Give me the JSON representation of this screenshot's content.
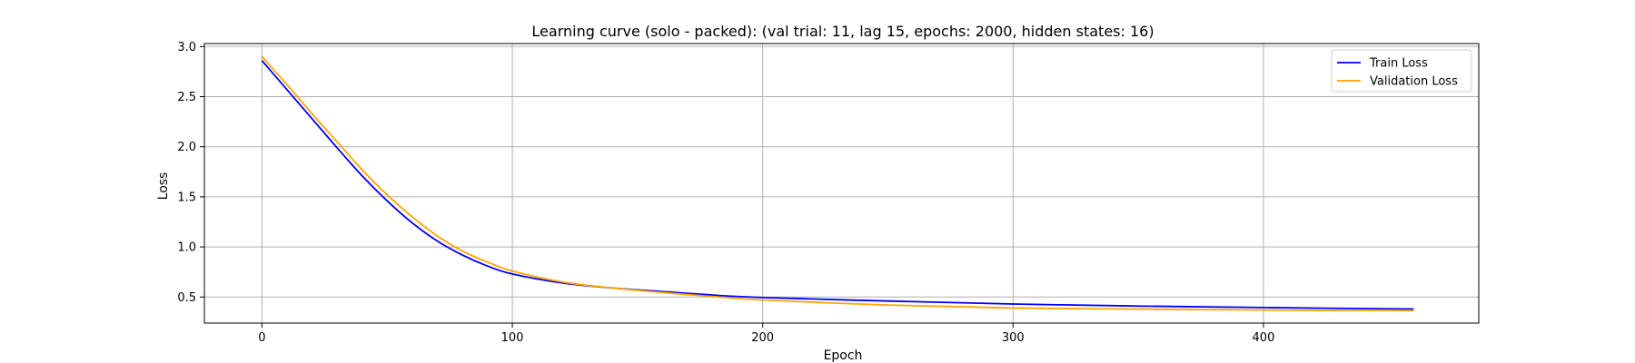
{
  "chart_data": {
    "type": "line",
    "title": "Learning curve (solo - packed): (val trial: 11, lag 15, epochs: 2000, hidden states: 16)",
    "xlabel": "Epoch",
    "ylabel": "Loss",
    "xlim": [
      -23,
      486
    ],
    "ylim": [
      0.24,
      3.03
    ],
    "xticks": [
      0,
      100,
      200,
      300,
      400
    ],
    "yticks": [
      0.5,
      1.0,
      1.5,
      2.0,
      2.5,
      3.0
    ],
    "xtick_labels": [
      "0",
      "100",
      "200",
      "300",
      "400"
    ],
    "ytick_labels": [
      "0.5",
      "1.0",
      "1.5",
      "2.0",
      "2.5",
      "3.0"
    ],
    "grid": true,
    "legend_position": "top-right",
    "series": [
      {
        "name": "Train Loss",
        "color": "#0000ff",
        "x": [
          0,
          10,
          20,
          30,
          40,
          50,
          60,
          70,
          80,
          90,
          100,
          120,
          140,
          160,
          180,
          200,
          250,
          300,
          350,
          400,
          460
        ],
        "y": [
          2.86,
          2.57,
          2.28,
          1.99,
          1.71,
          1.46,
          1.24,
          1.06,
          0.92,
          0.81,
          0.73,
          0.64,
          0.59,
          0.555,
          0.52,
          0.495,
          0.46,
          0.43,
          0.41,
          0.395,
          0.38
        ]
      },
      {
        "name": "Validation Loss",
        "color": "#ffa500",
        "x": [
          0,
          10,
          20,
          30,
          40,
          50,
          60,
          70,
          80,
          90,
          100,
          120,
          140,
          160,
          180,
          200,
          250,
          300,
          350,
          400,
          460
        ],
        "y": [
          2.9,
          2.62,
          2.33,
          2.05,
          1.77,
          1.52,
          1.3,
          1.11,
          0.96,
          0.85,
          0.76,
          0.65,
          0.59,
          0.545,
          0.505,
          0.47,
          0.42,
          0.39,
          0.38,
          0.37,
          0.365
        ]
      }
    ]
  }
}
